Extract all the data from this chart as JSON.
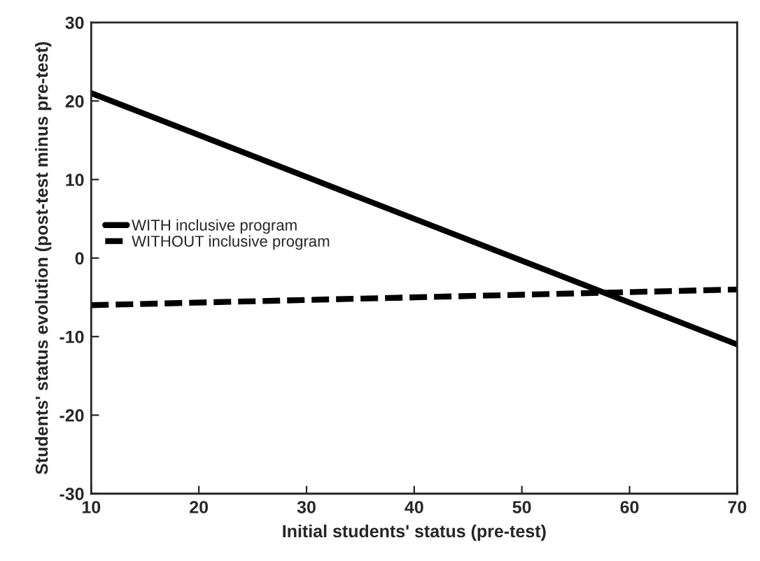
{
  "chart_data": {
    "type": "line",
    "xlabel": "Initial students' status (pre-test)",
    "ylabel": "Students' status evolution (post-test minus pre-test)",
    "x": [
      10,
      70
    ],
    "series": [
      {
        "name": "WITH inclusive program",
        "color": "#000000",
        "values": [
          21,
          -11
        ],
        "line_style": "solid"
      },
      {
        "name": "WITHOUT inclusive program",
        "color": "#000000",
        "values": [
          -6,
          -4
        ],
        "line_style": "dashed"
      }
    ],
    "xlim": [
      10,
      70
    ],
    "xticks": [
      10,
      20,
      30,
      40,
      50,
      60,
      70
    ],
    "ylim": [
      -30,
      30
    ],
    "yticks": [
      -30,
      -20,
      -10,
      0,
      10,
      20,
      30
    ],
    "grid": false,
    "legend": "left",
    "marker": "none"
  }
}
